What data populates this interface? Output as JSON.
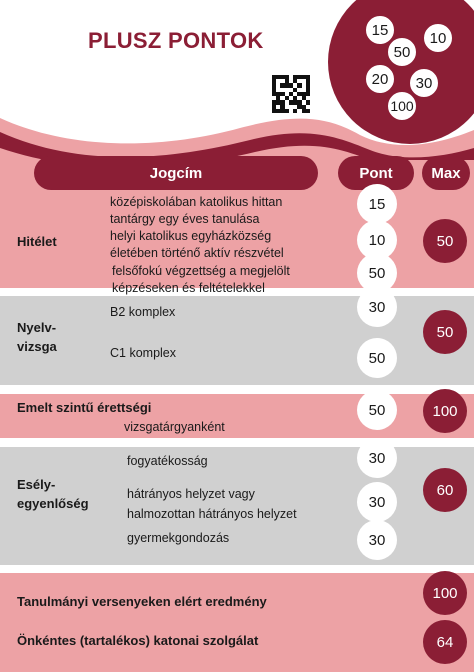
{
  "header": {
    "title": "PLUSZ PONTOK",
    "decor_values": [
      "15",
      "10",
      "50",
      "20",
      "30",
      "100"
    ]
  },
  "columns": {
    "jogcim": "Jogcím",
    "pont": "Pont",
    "max": "Max"
  },
  "sections": {
    "hitelet": {
      "label": "Hitélet",
      "items": [
        {
          "line1": "középiskolában katolikus hittan",
          "line2": "tantárgy egy éves tanulása",
          "points": "15"
        },
        {
          "line1": "helyi katolikus egyházközség",
          "line2": "életében történő aktív részvétel",
          "points": "10"
        },
        {
          "line1": "felsőfokú végzettség a megjelölt",
          "line2": "képzéseken és feltételekkel",
          "points": "50"
        }
      ],
      "max": "50"
    },
    "nyelvvizsga": {
      "label_line1": "Nyelv-",
      "label_line2": "vizsga",
      "items": [
        {
          "text": "B2 komplex",
          "points": "30"
        },
        {
          "text": "C1 komplex",
          "points": "50"
        }
      ],
      "max": "50"
    },
    "emelt": {
      "label": "Emelt szintű érettségi",
      "desc": "vizsgatárgyanként",
      "points": "50",
      "max": "100"
    },
    "esely": {
      "label_line1": "Esély-",
      "label_line2": "egyenlőség",
      "items": [
        {
          "text": "fogyatékosság",
          "points": "30"
        },
        {
          "line1": "hátrányos helyzet vagy",
          "line2": "halmozottan hátrányos helyzet",
          "points": "30"
        },
        {
          "text": "gyermekgondozás",
          "points": "30"
        }
      ],
      "max": "60"
    },
    "tanulmanyi": {
      "label": "Tanulmányi versenyeken elért eredmény",
      "max": "100"
    },
    "onkentes": {
      "label": "Önkéntes (tartalékos) katonai szolgálat",
      "max": "64"
    }
  },
  "colors": {
    "burgundy": "#8b1e35",
    "pink": "#eda2a5",
    "gray": "#d0d0d0"
  }
}
